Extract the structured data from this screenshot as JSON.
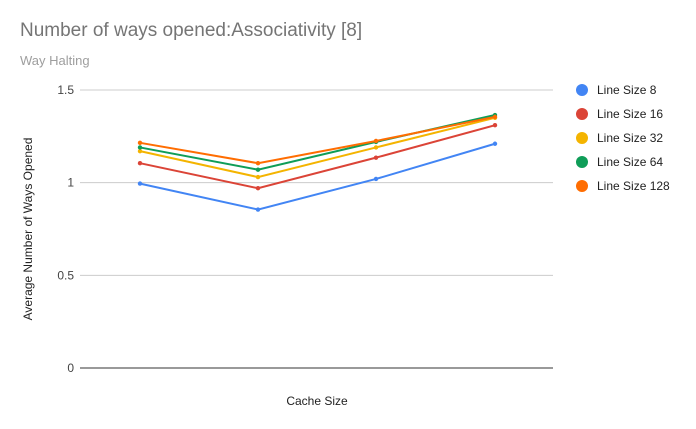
{
  "chart_data": {
    "type": "line",
    "title": "Number of ways opened:Associativity [8]",
    "subtitle": "Way Halting",
    "xlabel": "Cache Size",
    "ylabel": "Average Number of Ways Opened",
    "ylim": [
      0,
      1.5
    ],
    "yticks": [
      "0",
      "0.5",
      "1",
      "1.5"
    ],
    "grid": true,
    "legend_position": "right",
    "num_points": 4,
    "series": [
      {
        "name": "Line Size 8",
        "color": "#4285f4",
        "values": [
          0.995,
          0.855,
          1.02,
          1.21
        ]
      },
      {
        "name": "Line Size 16",
        "color": "#db4437",
        "values": [
          1.105,
          0.97,
          1.135,
          1.31
        ]
      },
      {
        "name": "Line Size 32",
        "color": "#f4b400",
        "values": [
          1.17,
          1.03,
          1.19,
          1.35
        ]
      },
      {
        "name": "Line Size 64",
        "color": "#0f9d58",
        "values": [
          1.19,
          1.07,
          1.22,
          1.365
        ]
      },
      {
        "name": "Line Size 128",
        "color": "#ff6d01",
        "values": [
          1.215,
          1.105,
          1.225,
          1.355
        ]
      }
    ]
  }
}
